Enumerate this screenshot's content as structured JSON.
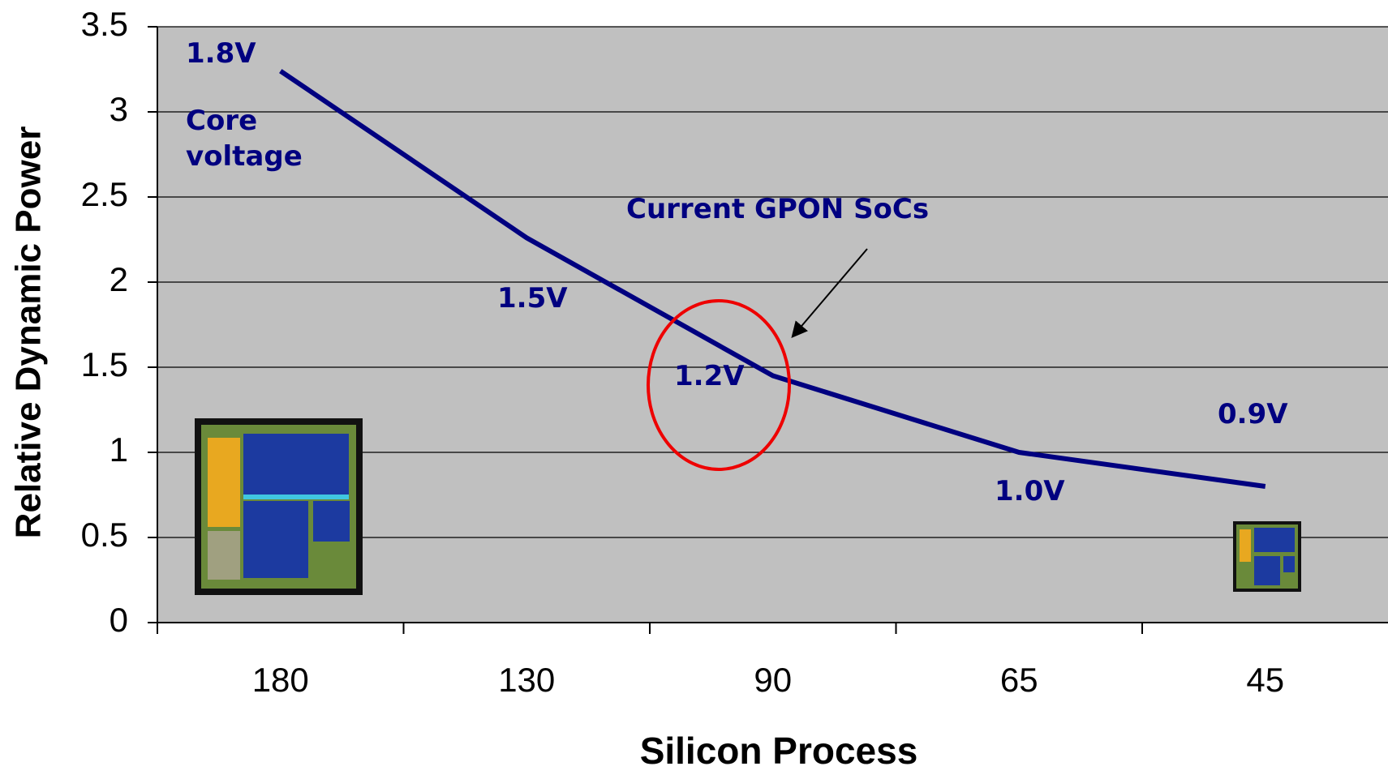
{
  "chart_data": {
    "type": "line",
    "x_label": "Silicon Process",
    "y_label": "Relative Dynamic Power",
    "categories": [
      "180",
      "130",
      "90",
      "65",
      "45"
    ],
    "series": [
      {
        "name": "Relative Dynamic Power",
        "color": "#000080",
        "values": [
          3.24,
          2.26,
          1.45,
          1.0,
          0.8
        ]
      }
    ],
    "ylim": [
      0,
      3.5
    ],
    "yticks": [
      0,
      0.5,
      1,
      1.5,
      2,
      2.5,
      3,
      3.5
    ],
    "grid": true,
    "annotations": [
      "1.8V",
      "Core voltage",
      "Current GPON SoCs",
      "1.5V",
      "1.2V",
      "1.0V",
      "0.9V"
    ]
  }
}
